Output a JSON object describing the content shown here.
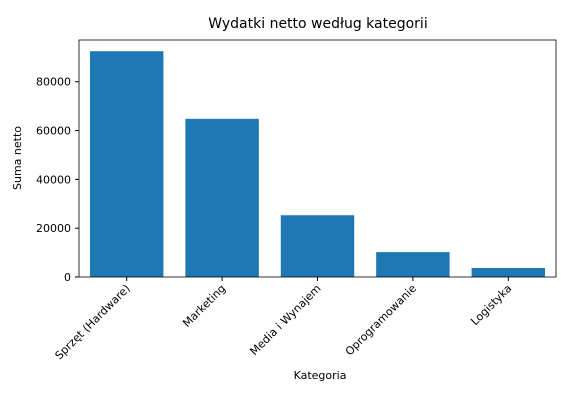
{
  "chart_data": {
    "type": "bar",
    "title": "Wydatki netto według kategorii",
    "xlabel": "Kategoria",
    "ylabel": "Suma netto",
    "categories": [
      "Sprzęt (Hardware)",
      "Marketing",
      "Media i Wynajem",
      "Oprogramowanie",
      "Logistyka"
    ],
    "values": [
      92500,
      64800,
      25300,
      10200,
      3700
    ],
    "color": "#1f77b4",
    "ylim": [
      0,
      97100
    ],
    "yticks": [
      0,
      20000,
      40000,
      60000,
      80000
    ],
    "grid": false
  }
}
